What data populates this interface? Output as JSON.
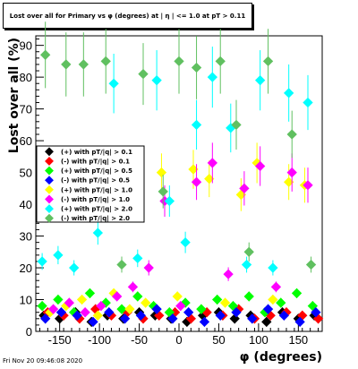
{
  "title": "Lost over all for Primary vs φ (degrees) at | η | <= 1.0 at pT > 0.11",
  "footer_timestamp": "Fri Nov 20 09:46:08 2020",
  "chart_data": {
    "type": "scatter",
    "title": "Lost over all for Primary vs φ (degrees) at | η | <= 1.0 at pT > 0.11",
    "xlabel": "φ (degrees)",
    "ylabel": "Lost over all (%)",
    "xlim": [
      -180,
      180
    ],
    "ylim": [
      0,
      93
    ],
    "xticks": [
      "-150",
      "-100",
      "-50",
      "0",
      "50",
      "100",
      "150"
    ],
    "yticks": [
      "0",
      "10",
      "20",
      "30",
      "40",
      "50",
      "60",
      "70",
      "80",
      "90"
    ],
    "grid": true,
    "legend_position": "left-middle",
    "series": [
      {
        "name": "(+) with pT/|q| > 0.1",
        "color": "#000000",
        "x": [
          -170,
          -150,
          -130,
          -110,
          -90,
          -70,
          -50,
          -30,
          -10,
          10,
          30,
          50,
          70,
          90,
          110,
          130,
          150,
          170
        ],
        "y": [
          5,
          4,
          6,
          3,
          5,
          4,
          6,
          5,
          4,
          3,
          5,
          6,
          4,
          5,
          3,
          6,
          4,
          5
        ]
      },
      {
        "name": "(-) with pT/|q| > 0.1",
        "color": "#ff0000",
        "x": [
          -165,
          -145,
          -125,
          -105,
          -85,
          -65,
          -45,
          -25,
          -5,
          15,
          35,
          55,
          75,
          95,
          115,
          135,
          155,
          175
        ],
        "y": [
          6,
          5,
          4,
          7,
          5,
          6,
          4,
          5,
          6,
          4,
          6,
          5,
          7,
          4,
          5,
          6,
          5,
          4
        ]
      },
      {
        "name": "(+) with pT/|q| > 0.5",
        "color": "#00ff00",
        "x": [
          -172,
          -152,
          -132,
          -112,
          -92,
          -72,
          -52,
          -32,
          -12,
          8,
          28,
          48,
          68,
          88,
          108,
          128,
          148,
          168
        ],
        "y": [
          8,
          10,
          6,
          12,
          9,
          7,
          11,
          8,
          6,
          9,
          7,
          10,
          8,
          11,
          6,
          9,
          12,
          8
        ]
      },
      {
        "name": "(-) with pT/|q| > 0.5",
        "color": "#0000ff",
        "x": [
          -168,
          -148,
          -128,
          -108,
          -88,
          -68,
          -48,
          -28,
          -8,
          12,
          32,
          52,
          72,
          92,
          112,
          132,
          152,
          172
        ],
        "y": [
          4,
          6,
          5,
          3,
          6,
          4,
          5,
          7,
          4,
          6,
          3,
          5,
          6,
          4,
          7,
          5,
          3,
          6
        ]
      },
      {
        "name": "(+) with pT/|q| > 1.0",
        "color": "#ffff00",
        "x": [
          -162,
          -142,
          -122,
          -102,
          -82,
          -62,
          -42,
          -22,
          -2,
          18,
          38,
          58,
          78,
          98,
          118,
          138,
          158
        ],
        "y": [
          6,
          8,
          10,
          5,
          12,
          7,
          9,
          50,
          11,
          51,
          48,
          9,
          43,
          53,
          10,
          47,
          46
        ]
      },
      {
        "name": "(-) with pT/|q| > 1.0",
        "color": "#ff00ff",
        "x": [
          -158,
          -138,
          -118,
          -98,
          -78,
          -58,
          -38,
          -18,
          2,
          22,
          42,
          62,
          82,
          102,
          122,
          142,
          162
        ],
        "y": [
          7,
          9,
          6,
          8,
          11,
          14,
          20,
          41,
          8,
          47,
          53,
          18,
          45,
          52,
          14,
          50,
          46
        ]
      },
      {
        "name": "(+) with pT/|q| > 2.0",
        "color": "#00ffff",
        "x": [
          -172,
          -152,
          -132,
          -102,
          -82,
          -52,
          -28,
          -12,
          8,
          22,
          42,
          65,
          85,
          102,
          118,
          138,
          162
        ],
        "y": [
          22,
          24,
          20,
          31,
          78,
          23,
          79,
          41,
          28,
          65,
          80,
          64,
          21,
          79,
          20,
          75,
          72
        ]
      },
      {
        "name": "(-) with pT/|q| > 2.0",
        "color": "#60c060",
        "x": [
          -168,
          -142,
          -120,
          -92,
          -72,
          -45,
          -20,
          0,
          22,
          52,
          72,
          88,
          112,
          142,
          166
        ],
        "y": [
          87,
          84,
          84,
          85,
          21,
          81,
          44,
          85,
          83,
          85,
          65,
          25,
          85,
          62,
          21
        ]
      }
    ]
  }
}
